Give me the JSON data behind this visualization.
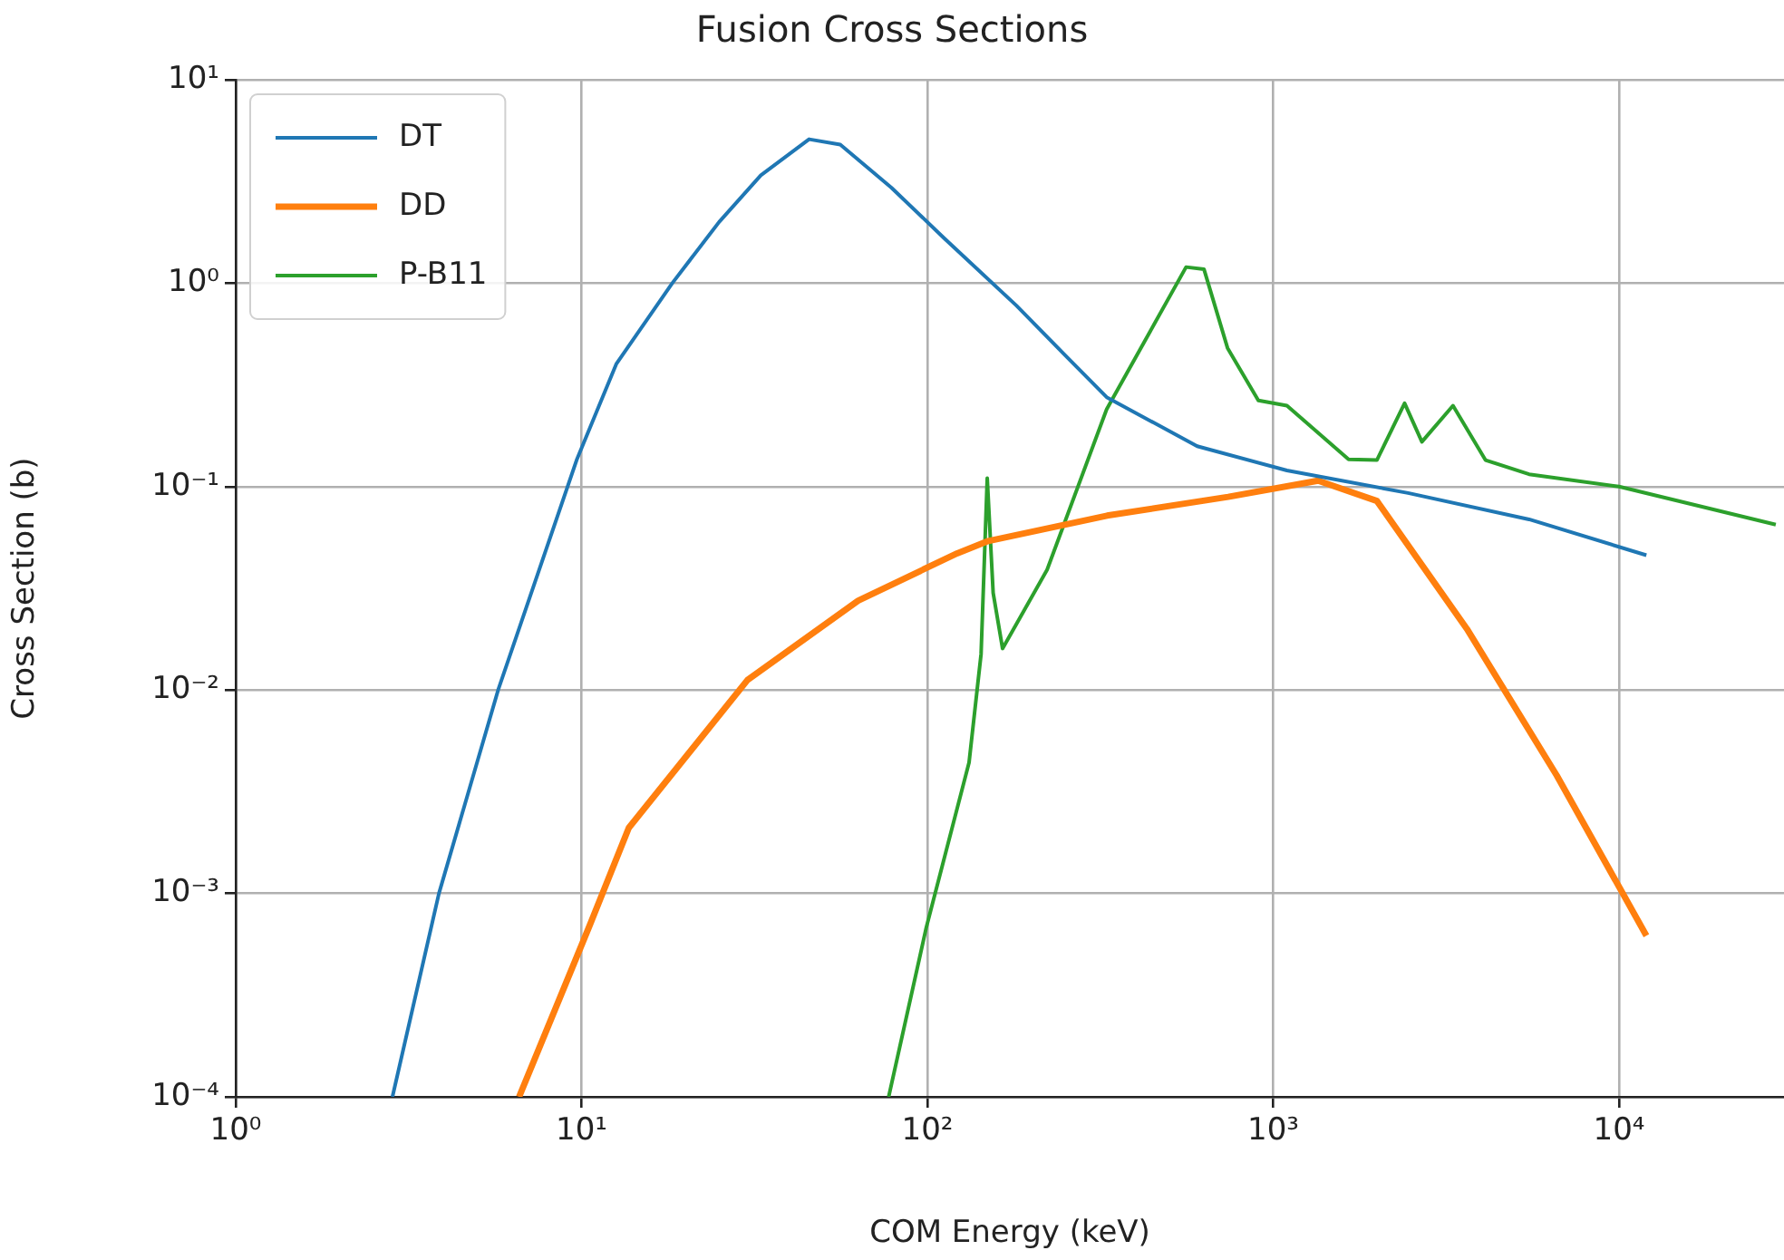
{
  "chart_data": {
    "type": "line",
    "title": "Fusion Cross Sections",
    "xlabel": "COM Energy (keV)",
    "ylabel": "Cross Section (b)",
    "log": "xy",
    "grid": true,
    "legend": "top left",
    "marker": "none",
    "line_style": "solid",
    "xlim": [
      1,
      30000
    ],
    "ylim": [
      0.0001,
      10
    ],
    "xticks": [
      {
        "value": 1,
        "label": "10⁰"
      },
      {
        "value": 10,
        "label": "10¹"
      },
      {
        "value": 100,
        "label": "10²"
      },
      {
        "value": 1000,
        "label": "10³"
      },
      {
        "value": 10000,
        "label": "10⁴"
      }
    ],
    "yticks": [
      {
        "value": 0.0001,
        "label": "10⁻⁴"
      },
      {
        "value": 0.001,
        "label": "10⁻³"
      },
      {
        "value": 0.01,
        "label": "10⁻²"
      },
      {
        "value": 0.1,
        "label": "10⁻¹"
      },
      {
        "value": 1,
        "label": "10⁰"
      },
      {
        "value": 10,
        "label": "10¹"
      }
    ],
    "series": [
      {
        "name": "DT",
        "color": "#1f77b4",
        "x": [
          2.84,
          3.87,
          5.74,
          9.68,
          12.6,
          18.3,
          25,
          33,
          45.5,
          56,
          78.7,
          112,
          181,
          251,
          330,
          603,
          1096,
          2455,
          5495,
          12000
        ],
        "values": [
          0.0001,
          0.001,
          0.01,
          0.135,
          0.4,
          1.0,
          2.0,
          3.39,
          5.1,
          4.8,
          2.95,
          1.66,
          0.776,
          0.44,
          0.275,
          0.158,
          0.12,
          0.093,
          0.069,
          0.046
        ]
      },
      {
        "name": "DD",
        "color": "#ff7f0e",
        "x": [
          6.6,
          10.5,
          13.7,
          30.2,
          63.1,
          122,
          150,
          331,
          741,
          1349,
          1995,
          3631,
          6607,
          12000
        ],
        "values": [
          0.0001,
          0.00068,
          0.0021,
          0.0112,
          0.0275,
          0.047,
          0.054,
          0.072,
          0.089,
          0.107,
          0.085,
          0.02,
          0.0038,
          0.00062
        ]
      },
      {
        "name": "P-B11",
        "color": "#2ca02c",
        "x": [
          77.3,
          99.3,
          132,
          143,
          149,
          155,
          165,
          222,
          330,
          560,
          631,
          738,
          906,
          1096,
          1652,
          1995,
          2399,
          2692,
          3311,
          4111,
          5495,
          10000,
          28400
        ],
        "values": [
          0.0001,
          0.00068,
          0.0044,
          0.015,
          0.11,
          0.03,
          0.016,
          0.039,
          0.24,
          1.2,
          1.17,
          0.48,
          0.265,
          0.25,
          0.136,
          0.135,
          0.257,
          0.166,
          0.25,
          0.135,
          0.115,
          0.1,
          0.065
        ]
      }
    ]
  }
}
